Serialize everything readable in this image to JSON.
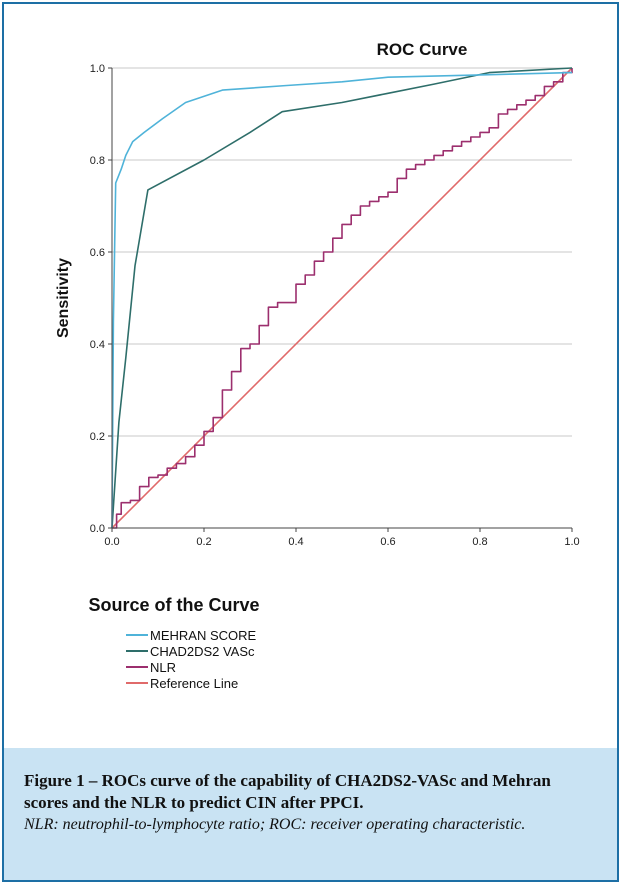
{
  "chart_data": {
    "type": "line",
    "title": "ROC Curve",
    "xlabel": "",
    "ylabel": "Sensitivity",
    "xlim": [
      0,
      1
    ],
    "ylim": [
      0,
      1
    ],
    "x_ticks": [
      "0.0",
      "0.2",
      "0.4",
      "0.6",
      "0.8",
      "1.0"
    ],
    "y_ticks": [
      "0.0",
      "0.2",
      "0.4",
      "0.6",
      "0.8",
      "1.0"
    ],
    "grid": "horizontal",
    "legend_title": "Source of the Curve",
    "legend_position": "bottom-left",
    "series": [
      {
        "name": "MEHRAN SCORE",
        "color": "#4fb3d9",
        "points": [
          [
            0,
            0
          ],
          [
            0.003,
            0.45
          ],
          [
            0.008,
            0.75
          ],
          [
            0.02,
            0.78
          ],
          [
            0.03,
            0.81
          ],
          [
            0.045,
            0.84
          ],
          [
            0.07,
            0.86
          ],
          [
            0.11,
            0.89
          ],
          [
            0.16,
            0.925
          ],
          [
            0.24,
            0.952
          ],
          [
            0.38,
            0.962
          ],
          [
            0.5,
            0.97
          ],
          [
            0.6,
            0.98
          ],
          [
            0.8,
            0.985
          ],
          [
            1.0,
            0.99
          ]
        ]
      },
      {
        "name": "CHAD2DS2 VASc",
        "color": "#2e6e6a",
        "points": [
          [
            0,
            0
          ],
          [
            0.015,
            0.23
          ],
          [
            0.03,
            0.37
          ],
          [
            0.05,
            0.57
          ],
          [
            0.078,
            0.735
          ],
          [
            0.2,
            0.8
          ],
          [
            0.3,
            0.86
          ],
          [
            0.37,
            0.905
          ],
          [
            0.5,
            0.925
          ],
          [
            0.6,
            0.945
          ],
          [
            0.7,
            0.965
          ],
          [
            0.82,
            0.99
          ],
          [
            1.0,
            1.0
          ]
        ]
      },
      {
        "name": "NLR",
        "color": "#9c2f6e",
        "points": [
          [
            0,
            0
          ],
          [
            0.01,
            0.03
          ],
          [
            0.02,
            0.055
          ],
          [
            0.04,
            0.06
          ],
          [
            0.06,
            0.09
          ],
          [
            0.08,
            0.11
          ],
          [
            0.1,
            0.115
          ],
          [
            0.12,
            0.13
          ],
          [
            0.14,
            0.14
          ],
          [
            0.16,
            0.155
          ],
          [
            0.18,
            0.18
          ],
          [
            0.2,
            0.21
          ],
          [
            0.22,
            0.24
          ],
          [
            0.24,
            0.3
          ],
          [
            0.26,
            0.34
          ],
          [
            0.28,
            0.39
          ],
          [
            0.3,
            0.4
          ],
          [
            0.32,
            0.44
          ],
          [
            0.34,
            0.48
          ],
          [
            0.36,
            0.49
          ],
          [
            0.38,
            0.49
          ],
          [
            0.4,
            0.53
          ],
          [
            0.42,
            0.55
          ],
          [
            0.44,
            0.58
          ],
          [
            0.46,
            0.6
          ],
          [
            0.48,
            0.63
          ],
          [
            0.5,
            0.66
          ],
          [
            0.52,
            0.68
          ],
          [
            0.54,
            0.7
          ],
          [
            0.56,
            0.71
          ],
          [
            0.58,
            0.72
          ],
          [
            0.6,
            0.73
          ],
          [
            0.62,
            0.76
          ],
          [
            0.64,
            0.78
          ],
          [
            0.66,
            0.79
          ],
          [
            0.68,
            0.8
          ],
          [
            0.7,
            0.81
          ],
          [
            0.72,
            0.82
          ],
          [
            0.74,
            0.83
          ],
          [
            0.76,
            0.84
          ],
          [
            0.78,
            0.85
          ],
          [
            0.8,
            0.86
          ],
          [
            0.82,
            0.87
          ],
          [
            0.84,
            0.9
          ],
          [
            0.86,
            0.91
          ],
          [
            0.88,
            0.92
          ],
          [
            0.9,
            0.93
          ],
          [
            0.92,
            0.94
          ],
          [
            0.94,
            0.96
          ],
          [
            0.96,
            0.97
          ],
          [
            0.98,
            0.99
          ],
          [
            1.0,
            1.0
          ]
        ]
      },
      {
        "name": "Reference Line",
        "color": "#e06a6a",
        "points": [
          [
            0,
            0
          ],
          [
            1,
            1
          ]
        ]
      }
    ]
  },
  "caption": {
    "title": "Figure 1 – ROCs curve of the capability of CHA2DS2-VASc and Mehran scores and the NLR to predict CIN after PPCI.",
    "note": "NLR: neutrophil-to-lymphocyte ratio; ROC: receiver operating characteristic."
  },
  "colors": {
    "frame_border": "#1d6fa5",
    "caption_background": "#c9e3f3",
    "gridline": "#c8c8c8"
  }
}
